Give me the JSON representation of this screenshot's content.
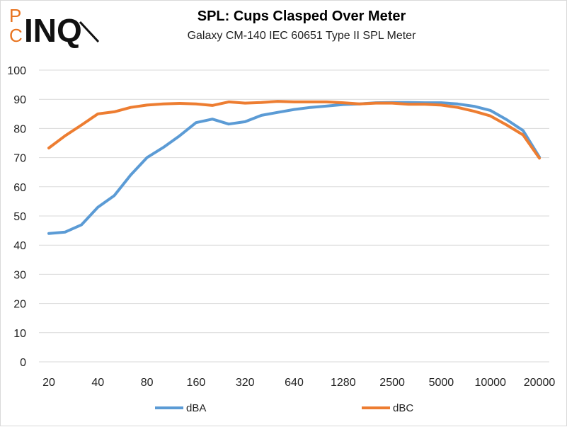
{
  "logo": {
    "p": "P",
    "c": "C",
    "inq": "INQ",
    "accent": "#e8731f"
  },
  "chart_data": {
    "type": "line",
    "title": "SPL: Cups Clasped Over Meter",
    "subtitle": "Galaxy CM-140 IEC 60651 Type II SPL Meter",
    "xlabel": "",
    "ylabel": "",
    "ylim": [
      0,
      100
    ],
    "yticks": [
      0,
      10,
      20,
      30,
      40,
      50,
      60,
      70,
      80,
      90,
      100
    ],
    "x_tick_labels": [
      "20",
      "40",
      "80",
      "160",
      "320",
      "640",
      "1280",
      "2500",
      "5000",
      "10000",
      "20000"
    ],
    "x_index_range": [
      0,
      30
    ],
    "grid": true,
    "legend_position": "bottom",
    "series": [
      {
        "name": "dBA",
        "color": "#5b9bd5",
        "values": [
          44,
          44.5,
          47,
          53,
          57,
          64,
          70,
          73.5,
          77.5,
          82,
          83.2,
          81.5,
          82.3,
          84.5,
          85.5,
          86.5,
          87.2,
          87.7,
          88.2,
          88.4,
          88.8,
          88.9,
          88.9,
          88.8,
          88.8,
          88.4,
          87.6,
          86.2,
          83,
          79.3,
          70.2
        ]
      },
      {
        "name": "dBC",
        "color": "#ed7d31",
        "values": [
          73.3,
          77.5,
          81.2,
          85,
          85.7,
          87.2,
          88,
          88.4,
          88.6,
          88.4,
          87.9,
          89.1,
          88.7,
          88.9,
          89.3,
          89.1,
          89.1,
          89.1,
          88.8,
          88.4,
          88.7,
          88.7,
          88.3,
          88.3,
          88,
          87.2,
          85.9,
          84.3,
          81.2,
          77.8,
          69.8
        ]
      }
    ]
  }
}
